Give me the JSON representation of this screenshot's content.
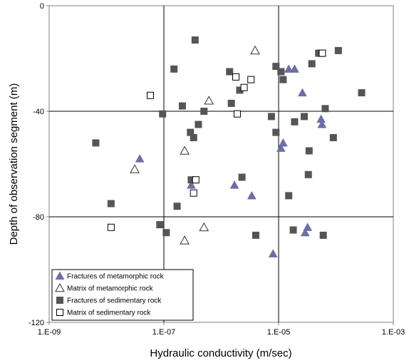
{
  "chart_data": {
    "type": "scatter",
    "x_scale": "log",
    "xlim": [
      1e-09,
      0.001
    ],
    "ylim": [
      -120,
      0
    ],
    "xlabel": "Hydraulic conductivity (m/sec)",
    "ylabel": "Depth of observation segment (m)",
    "x_ticks": [
      "1.E-09",
      "1.E-07",
      "1.E-05",
      "1.E-03"
    ],
    "y_ticks": [
      "0",
      "-40",
      "-80",
      "-120"
    ],
    "grid": true,
    "legend_position": "bottom-left",
    "series": [
      {
        "name": "Fractures of metamorphic rock",
        "marker": "filled-triangle",
        "color": "#6b6fa3",
        "points": [
          [
            3.8e-08,
            -58
          ],
          [
            3e-07,
            -68
          ],
          [
            1.7e-06,
            -68
          ],
          [
            3.4e-06,
            -72
          ],
          [
            8e-06,
            -94
          ],
          [
            1.1e-05,
            -54
          ],
          [
            1.2e-05,
            -52
          ],
          [
            1.5e-05,
            -24
          ],
          [
            1.9e-05,
            -24
          ],
          [
            2.6e-05,
            -33
          ],
          [
            2.9e-05,
            -86
          ],
          [
            3.2e-05,
            -84
          ],
          [
            5.5e-05,
            -43
          ],
          [
            5.7e-05,
            -45
          ]
        ]
      },
      {
        "name": "Matrix of metamorphic rock",
        "marker": "open-triangle",
        "color": "#333333",
        "points": [
          [
            3.1e-08,
            -62
          ],
          [
            2.3e-07,
            -55
          ],
          [
            2.3e-07,
            -89
          ],
          [
            5e-07,
            -84
          ],
          [
            6.1e-07,
            -36
          ],
          [
            3.9e-06,
            -17
          ]
        ]
      },
      {
        "name": "Fractures of sedimentary rock",
        "marker": "filled-square",
        "color": "#555555",
        "points": [
          [
            6.5e-09,
            -52
          ],
          [
            1.2e-08,
            -75
          ],
          [
            8.5e-08,
            -83
          ],
          [
            9.5e-08,
            -41
          ],
          [
            1.1e-07,
            -86
          ],
          [
            1.5e-07,
            -24
          ],
          [
            1.7e-07,
            -76
          ],
          [
            2.1e-07,
            -38
          ],
          [
            2.9e-07,
            -48
          ],
          [
            3e-07,
            -66
          ],
          [
            3.3e-07,
            -50
          ],
          [
            3.5e-07,
            -13
          ],
          [
            4e-07,
            -45
          ],
          [
            5e-07,
            -40
          ],
          [
            1.4e-06,
            -25
          ],
          [
            1.5e-06,
            -37
          ],
          [
            2.1e-06,
            -32
          ],
          [
            2.3e-06,
            -65
          ],
          [
            4e-06,
            -87
          ],
          [
            7.5e-06,
            -42
          ],
          [
            9e-06,
            -48
          ],
          [
            9e-06,
            -23
          ],
          [
            1.1e-05,
            -25
          ],
          [
            1.2e-05,
            -28
          ],
          [
            1.5e-05,
            -72
          ],
          [
            1.8e-05,
            -85
          ],
          [
            1.9e-05,
            -44
          ],
          [
            2.8e-05,
            -42
          ],
          [
            3.3e-05,
            -64
          ],
          [
            3.4e-05,
            -55
          ],
          [
            3.8e-05,
            -22
          ],
          [
            5e-05,
            -18
          ],
          [
            5.5e-05,
            -18
          ],
          [
            6e-05,
            -87
          ],
          [
            6.5e-05,
            -39
          ],
          [
            9e-05,
            -50
          ],
          [
            0.00011,
            -17
          ],
          [
            0.00028,
            -33
          ]
        ]
      },
      {
        "name": "Matrix of sedimentary rock",
        "marker": "open-square",
        "color": "#000000",
        "points": [
          [
            1.2e-08,
            -84
          ],
          [
            5.8e-08,
            -34
          ],
          [
            3.3e-07,
            -71
          ],
          [
            3.6e-07,
            -66
          ],
          [
            1.8e-06,
            -27
          ],
          [
            1.9e-06,
            -41
          ],
          [
            2.5e-06,
            -31
          ],
          [
            3.3e-06,
            -28
          ],
          [
            5.8e-05,
            -18
          ]
        ]
      }
    ]
  }
}
